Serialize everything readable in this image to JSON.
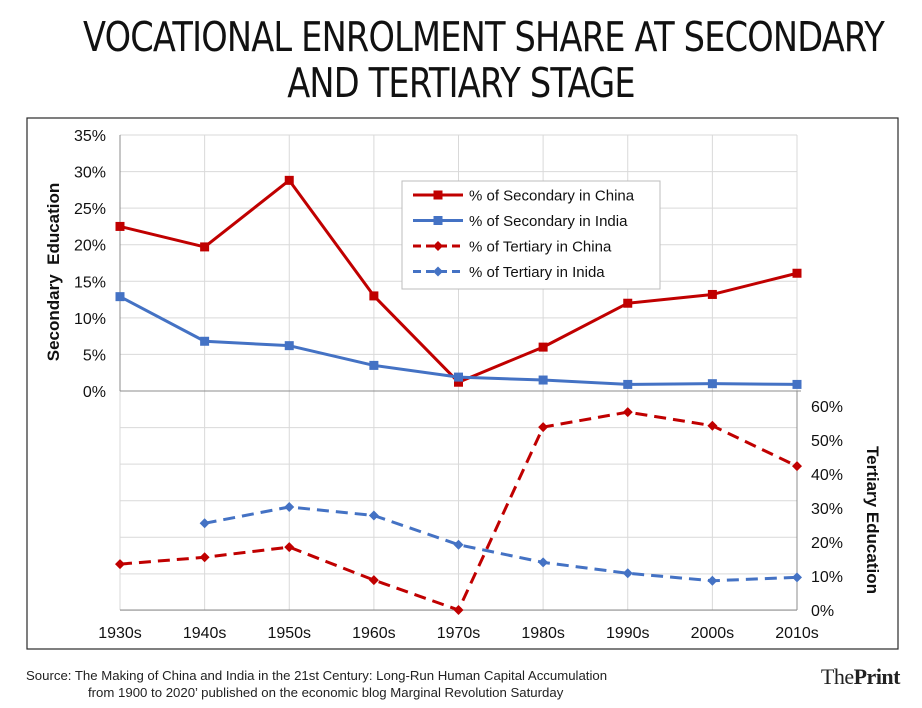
{
  "title_line1": "VOCATIONAL ENROLMENT SHARE AT SECONDARY",
  "title_line2": "AND TERTIARY STAGE",
  "source_line1": "Source: The Making of China and India in the 21st Century: Long-Run Human Capital Accumulation",
  "source_line2": "from 1900 to 2020’ published on the economic blog Marginal Revolution Saturday",
  "brand_the": "The",
  "brand_print": "Print",
  "chart_data": {
    "type": "line",
    "categories": [
      "1930s",
      "1940s",
      "1950s",
      "1960s",
      "1970s",
      "1980s",
      "1990s",
      "2000s",
      "2010s"
    ],
    "left_axis": {
      "label": "Secondary  Education",
      "ticks": [
        "35%",
        "30%",
        "25%",
        "20%",
        "15%",
        "10%",
        "5%",
        "0%"
      ],
      "range": [
        0,
        35
      ]
    },
    "right_axis": {
      "label": "Tertiary Education",
      "ticks": [
        "60%",
        "50%",
        "40%",
        "30%",
        "20%",
        "10%",
        "0%"
      ],
      "range": [
        0,
        60
      ]
    },
    "series": [
      {
        "name": "% of Secondary in China",
        "axis": "left",
        "color": "#c00000",
        "style": "solid",
        "marker": "square",
        "values": [
          22.5,
          19.7,
          28.8,
          13.0,
          1.2,
          6.0,
          12.0,
          13.2,
          16.1
        ]
      },
      {
        "name": "% of Secondary in India",
        "axis": "left",
        "color": "#4472c4",
        "style": "solid",
        "marker": "square",
        "values": [
          12.9,
          6.8,
          6.2,
          3.5,
          1.9,
          1.5,
          0.9,
          1.0,
          0.9
        ]
      },
      {
        "name": "% of Tertiary in China",
        "axis": "right",
        "color": "#c00000",
        "style": "dashed",
        "marker": "diamond",
        "values": [
          13.5,
          15.5,
          18.5,
          8.8,
          0,
          53.8,
          58.2,
          54.2,
          42.3
        ]
      },
      {
        "name": "% of Tertiary in Inida",
        "axis": "right",
        "color": "#4472c4",
        "style": "dashed",
        "marker": "diamond",
        "values": [
          null,
          25.5,
          30.3,
          27.8,
          19.2,
          14.0,
          10.8,
          8.6,
          9.6
        ]
      }
    ],
    "legend_position": "top-right"
  }
}
